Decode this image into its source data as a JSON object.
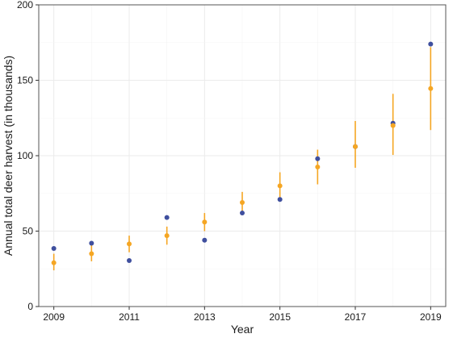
{
  "chart_data": {
    "type": "scatter",
    "title": "",
    "xlabel": "Year",
    "ylabel": "Annual total deer harvest (in thousands)",
    "xlim": [
      2008.6,
      2019.4
    ],
    "ylim": [
      0,
      200
    ],
    "x_ticks": [
      2009,
      2011,
      2013,
      2015,
      2017,
      2019
    ],
    "y_ticks": [
      0,
      50,
      100,
      150,
      200
    ],
    "grid": true,
    "legend": "none",
    "series": [
      {
        "color": "#3f4f9e",
        "points": [
          {
            "x": 2009,
            "y": 38.5
          },
          {
            "x": 2010,
            "y": 42
          },
          {
            "x": 2011,
            "y": 30.5
          },
          {
            "x": 2012,
            "y": 59
          },
          {
            "x": 2013,
            "y": 44
          },
          {
            "x": 2014,
            "y": 62
          },
          {
            "x": 2015,
            "y": 71
          },
          {
            "x": 2016,
            "y": 98
          },
          {
            "x": 2017,
            "y": 106
          },
          {
            "x": 2018,
            "y": 121.5
          },
          {
            "x": 2019,
            "y": 174
          }
        ]
      },
      {
        "color": "#f5a623",
        "points": [
          {
            "x": 2009,
            "y": 29,
            "low": 24,
            "high": 35
          },
          {
            "x": 2010,
            "y": 35,
            "low": 30,
            "high": 41
          },
          {
            "x": 2011,
            "y": 41.5,
            "low": 36,
            "high": 47
          },
          {
            "x": 2012,
            "y": 47,
            "low": 41,
            "high": 53
          },
          {
            "x": 2013,
            "y": 56,
            "low": 50,
            "high": 62
          },
          {
            "x": 2014,
            "y": 69,
            "low": 62,
            "high": 76
          },
          {
            "x": 2015,
            "y": 80,
            "low": 72,
            "high": 89
          },
          {
            "x": 2016,
            "y": 92.5,
            "low": 81,
            "high": 104
          },
          {
            "x": 2017,
            "y": 106,
            "low": 92,
            "high": 123
          },
          {
            "x": 2018,
            "y": 120,
            "low": 100.5,
            "high": 141
          },
          {
            "x": 2019,
            "y": 144.5,
            "low": 117,
            "high": 172
          }
        ]
      }
    ]
  }
}
